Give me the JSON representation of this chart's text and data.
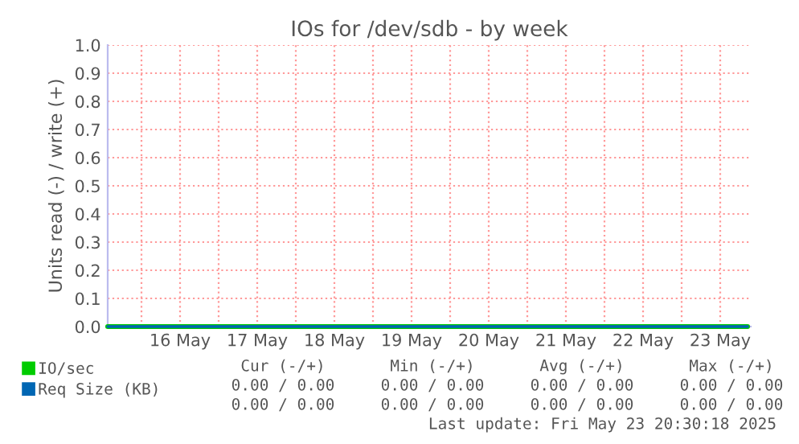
{
  "chart_data": {
    "type": "line",
    "title": "IOs for /dev/sdb - by week",
    "ylabel": "Units read (-) / write (+)",
    "x": [
      "2025-05-15T13:30",
      "2025-05-23T20:30"
    ],
    "series": [
      {
        "name": "IO/sec",
        "color": "#00cc00",
        "values": [
          0,
          0
        ]
      },
      {
        "name": "Req Size (KB)",
        "color": "#0066b3",
        "values": [
          0,
          0
        ]
      }
    ],
    "xlim": [
      "2025-05-15T13:30",
      "2025-05-23T21:30"
    ],
    "xticks": [
      {
        "value": "2025-05-16",
        "label": null
      },
      {
        "value": "2025-05-16T12:00",
        "label": "16 May"
      },
      {
        "value": "2025-05-17",
        "label": null
      },
      {
        "value": "2025-05-17T12:00",
        "label": "17 May"
      },
      {
        "value": "2025-05-18",
        "label": null
      },
      {
        "value": "2025-05-18T12:00",
        "label": "18 May"
      },
      {
        "value": "2025-05-19",
        "label": null
      },
      {
        "value": "2025-05-19T12:00",
        "label": "19 May"
      },
      {
        "value": "2025-05-20",
        "label": null
      },
      {
        "value": "2025-05-20T12:00",
        "label": "20 May"
      },
      {
        "value": "2025-05-21",
        "label": null
      },
      {
        "value": "2025-05-21T12:00",
        "label": "21 May"
      },
      {
        "value": "2025-05-22",
        "label": null
      },
      {
        "value": "2025-05-22T12:00",
        "label": "22 May"
      },
      {
        "value": "2025-05-23",
        "label": null
      },
      {
        "value": "2025-05-23T12:00",
        "label": "23 May"
      }
    ],
    "ylim": [
      0,
      1
    ],
    "yticks": [
      {
        "value": 0,
        "label": "0.0"
      },
      {
        "value": 0.1,
        "label": "0.1"
      },
      {
        "value": 0.2,
        "label": "0.2"
      },
      {
        "value": 0.3,
        "label": "0.3"
      },
      {
        "value": 0.4,
        "label": "0.4"
      },
      {
        "value": 0.5,
        "label": "0.5"
      },
      {
        "value": 0.6,
        "label": "0.6"
      },
      {
        "value": 0.7,
        "label": "0.7"
      },
      {
        "value": 0.8,
        "label": "0.8"
      },
      {
        "value": 0.9,
        "label": "0.9"
      },
      {
        "value": 1,
        "label": "1.0"
      }
    ],
    "grid": true,
    "legend": "bottom",
    "marker": "none",
    "line_style": "solid",
    "annotations": [
      "Cur (-/+)",
      "Min (-/+)",
      "Avg (-/+)",
      "Max (-/+)",
      "0.00 / 0.00",
      "0.00 / 0.00",
      "0.00 / 0.00",
      "0.00 / 0.00",
      "0.00 / 0.00",
      "0.00 / 0.00",
      "0.00 / 0.00",
      "0.00 / 0.00",
      "Last update: Fri May 23 20:30:18 2025"
    ]
  }
}
